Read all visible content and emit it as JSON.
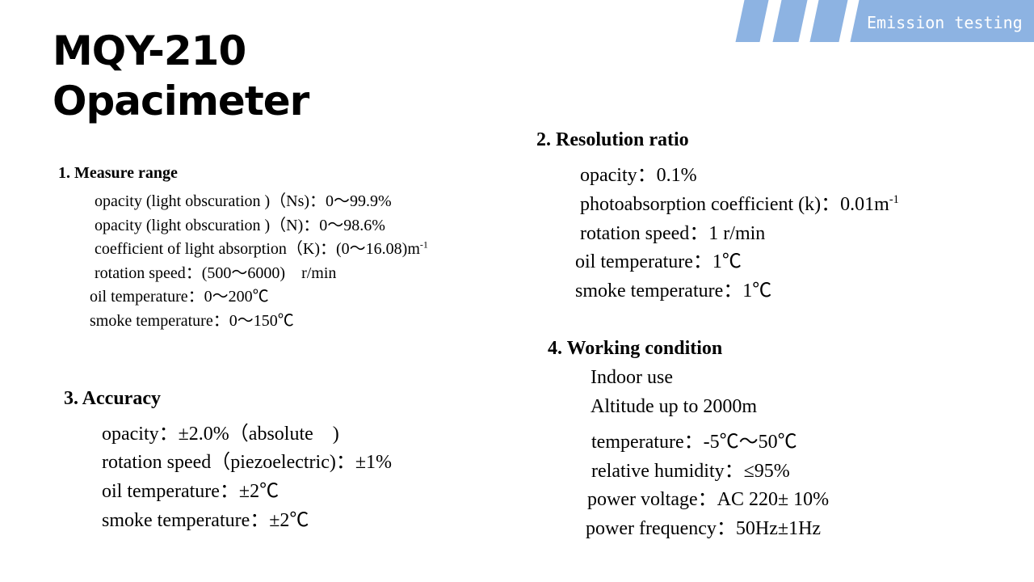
{
  "header": {
    "banner_text": "Emission testing",
    "accent": "#8db3e2"
  },
  "title": {
    "line1": "MQY-210",
    "line2": "Opacimeter"
  },
  "measure_range": {
    "heading": "1. Measure range",
    "items": [
      "opacity (light obscuration )（Ns)：0～99.9%",
      "opacity (light obscuration )（N)：0～98.6%",
      "coefficient of light absorption（K)：(0～16.08)m",
      "rotation speed：(500～6000)　r/min",
      "oil temperature：0～200℃",
      "smoke temperature：0～150℃"
    ],
    "sup": "-1"
  },
  "resolution": {
    "heading": "2. Resolution ratio",
    "items": [
      "opacity：0.1%",
      "photoabsorption coefficient (k)：0.01m",
      "rotation speed：1 r/min",
      "oil temperature：1℃",
      "smoke temperature：1℃"
    ],
    "sup": "-1"
  },
  "accuracy": {
    "heading": "3. Accuracy",
    "items": [
      "opacity：±2.0%（absolute　)",
      "rotation speed（piezoelectric)：±1%",
      "oil temperature：±2℃",
      "smoke temperature：±2℃"
    ]
  },
  "working": {
    "heading": "4. Working condition",
    "items": [
      "Indoor use",
      "Altitude up to 2000m",
      "temperature：-5℃～50℃",
      "relative humidity：≤95%",
      "power voltage：AC 220± 10%",
      "power frequency：50Hz±1Hz"
    ]
  }
}
